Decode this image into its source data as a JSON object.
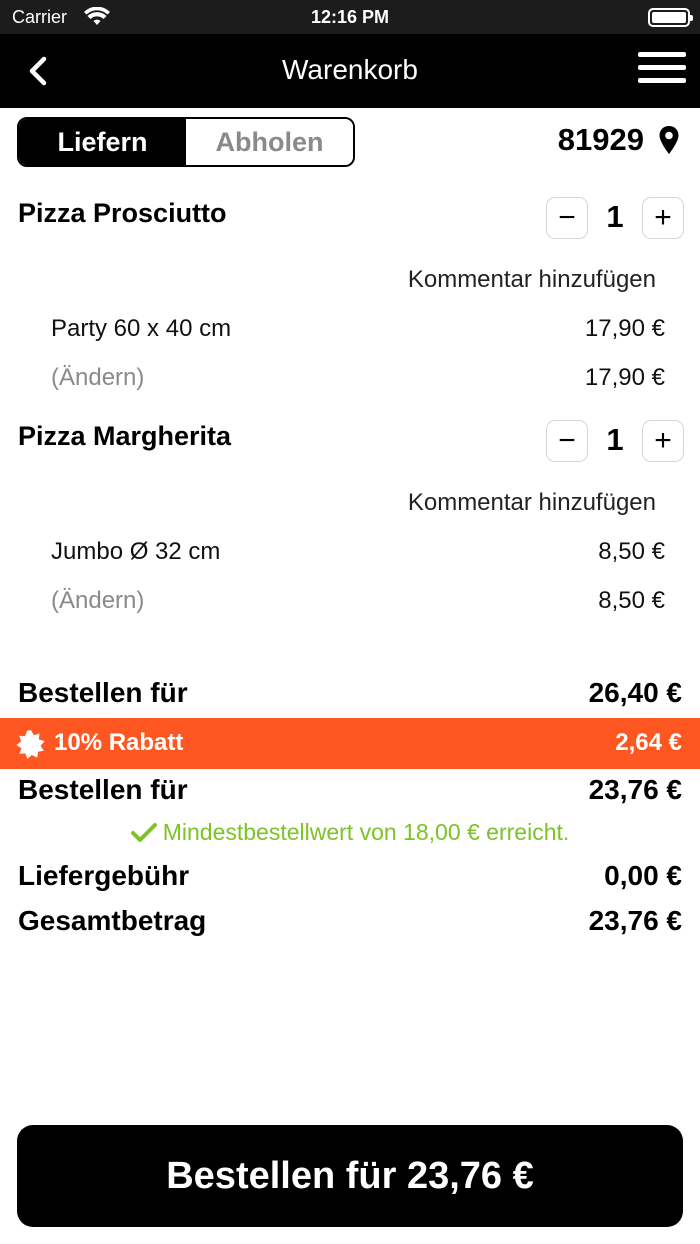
{
  "status_bar": {
    "carrier": "Carrier",
    "time": "12:16 PM"
  },
  "nav": {
    "title": "Warenkorb",
    "back_icon": "chevron-left-icon",
    "menu_icon": "hamburger-icon"
  },
  "delivery_toggle": {
    "options": [
      "Liefern",
      "Abholen"
    ],
    "selected": "Liefern"
  },
  "location": {
    "zip": "81929",
    "icon": "map-pin-icon"
  },
  "items": [
    {
      "name": "Pizza Prosciutto",
      "quantity": "1",
      "comment_label": "Kommentar hinzufügen",
      "size": "Party 60 x 40 cm",
      "size_price": "17,90 €",
      "change_label": "(Ändern)",
      "total": "17,90 €"
    },
    {
      "name": "Pizza Margherita",
      "quantity": "1",
      "comment_label": "Kommentar hinzufügen",
      "size": "Jumbo Ø 32 cm",
      "size_price": "8,50 €",
      "change_label": "(Ändern)",
      "total": "8,50 €"
    }
  ],
  "summary": {
    "subtotal_label": "Bestellen für",
    "subtotal": "26,40 €",
    "discount_label": "10% Rabatt",
    "discount": "2,64 €",
    "after_discount_label": "Bestellen für",
    "after_discount": "23,76 €",
    "min_order_message": "Mindestbestellwert von 18,00 € erreicht.",
    "delivery_fee_label": "Liefergebühr",
    "delivery_fee": "0,00 €",
    "total_label": "Gesamtbetrag",
    "total": "23,76 €"
  },
  "checkout_button": "Bestellen für 23,76 €",
  "colors": {
    "accent": "#ff5722",
    "success": "#7cc324",
    "bar": "#000000"
  }
}
